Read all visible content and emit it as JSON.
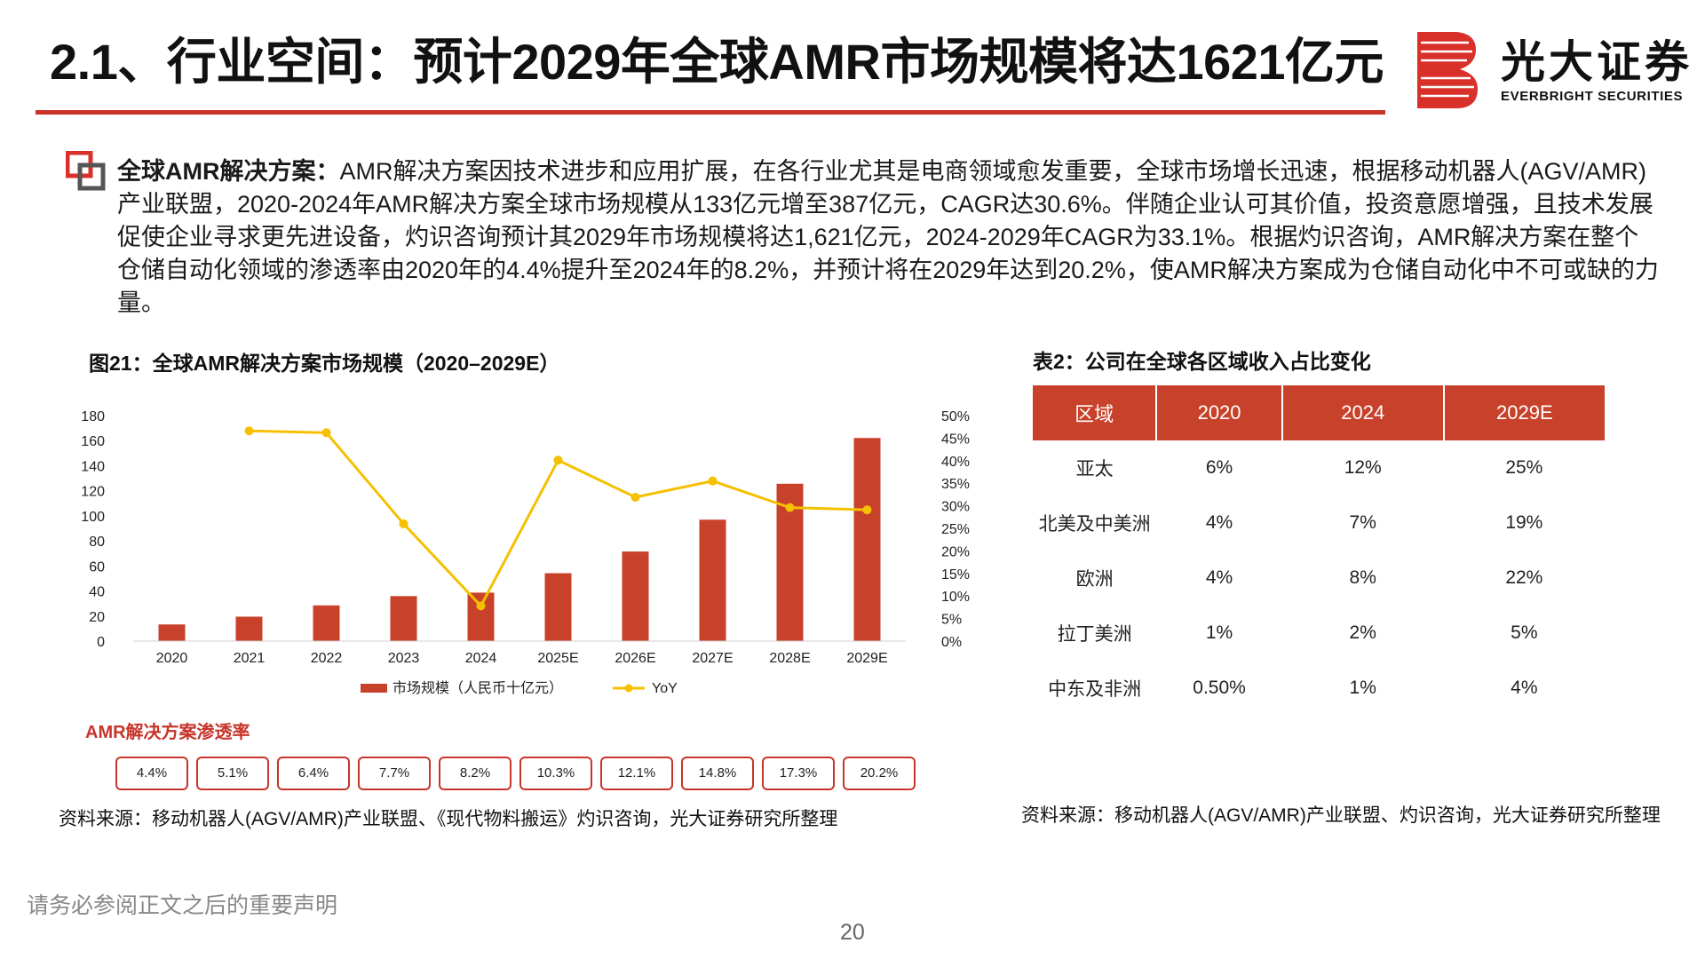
{
  "header": {
    "title": "2.1、行业空间：预计2029年全球AMR市场规模将达1621亿元",
    "logo_cn": "光大证券",
    "logo_en": "EVERBRIGHT SECURITIES",
    "brand_color": "#c8342a"
  },
  "summary": {
    "lead": "全球AMR解决方案：",
    "body": "AMR解决方案因技术进步和应用扩展，在各行业尤其是电商领域愈发重要，全球市场增长迅速，根据移动机器人(AGV/AMR)产业联盟，2020-2024年AMR解决方案全球市场规模从133亿元增至387亿元，CAGR达30.6%。伴随企业认可其价值，投资意愿增强，且技术发展促使企业寻求更先进设备，灼识咨询预计其2029年市场规模将达1,621亿元，2024-2029年CAGR为33.1%。根据灼识咨询，AMR解决方案在整个仓储自动化领域的渗透率由2020年的4.4%提升至2024年的8.2%，并预计将在2029年达到20.2%，使AMR解决方案成为仓储自动化中不可或缺的力量。"
  },
  "chart": {
    "title": "图21：全球AMR解决方案市场规模（2020–2029E）",
    "source": "资料来源：移动机器人(AGV/AMR)产业联盟、《现代物料搬运》灼识咨询，光大证券研究所整理",
    "penetration_title": "AMR解决方案渗透率",
    "penetration": [
      "4.4%",
      "5.1%",
      "6.4%",
      "7.7%",
      "8.2%",
      "10.3%",
      "12.1%",
      "14.8%",
      "17.3%",
      "20.2%"
    ]
  },
  "chart_data": {
    "type": "bar",
    "categories": [
      "2020",
      "2021",
      "2022",
      "2023",
      "2024",
      "2025E",
      "2026E",
      "2027E",
      "2028E",
      "2029E"
    ],
    "series": [
      {
        "name": "市场规模（人民币十亿元）",
        "type": "bar",
        "axis": "left",
        "color": "#c8412a",
        "values": [
          13.3,
          19.5,
          28.5,
          35.9,
          38.7,
          54.2,
          71.5,
          96.9,
          125.6,
          162.1
        ]
      },
      {
        "name": "YoY",
        "type": "line",
        "axis": "right",
        "color": "#f5c000",
        "values": [
          null,
          46.6,
          46.2,
          26.0,
          7.8,
          40.1,
          31.9,
          35.5,
          29.6,
          29.1
        ]
      }
    ],
    "left_axis": {
      "ticks": [
        "0",
        "20",
        "40",
        "60",
        "80",
        "100",
        "120",
        "140",
        "160",
        "180"
      ],
      "ylim": [
        0,
        180
      ]
    },
    "right_axis": {
      "ticks": [
        "0%",
        "5%",
        "10%",
        "15%",
        "20%",
        "25%",
        "30%",
        "35%",
        "40%",
        "45%",
        "50%"
      ],
      "ylim": [
        0,
        50
      ]
    },
    "legend": "bottom-center",
    "grid": false
  },
  "table": {
    "title": "表2：公司在全球各区域收入占比变化",
    "headers": [
      "区域",
      "2020",
      "2024",
      "2029E"
    ],
    "rows": [
      [
        "亚太",
        "6%",
        "12%",
        "25%"
      ],
      [
        "北美及中美洲",
        "4%",
        "7%",
        "19%"
      ],
      [
        "欧洲",
        "4%",
        "8%",
        "22%"
      ],
      [
        "拉丁美洲",
        "1%",
        "2%",
        "5%"
      ],
      [
        "中东及非洲",
        "0.50%",
        "1%",
        "4%"
      ]
    ],
    "source": "资料来源：移动机器人(AGV/AMR)产业联盟、灼识咨询，光大证券研究所整理",
    "header_color": "#c8412a"
  },
  "footer": {
    "disclaimer": "请务必参阅正文之后的重要声明",
    "page": "20"
  }
}
